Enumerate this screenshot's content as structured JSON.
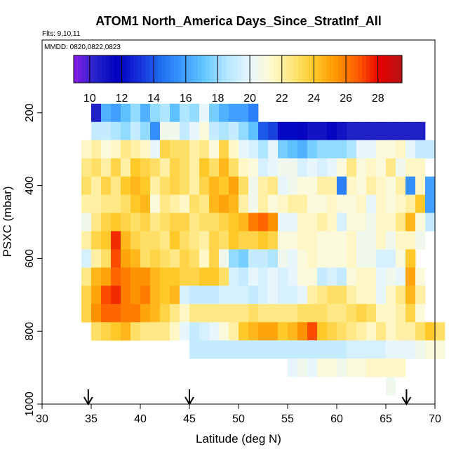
{
  "chart_data": {
    "type": "heatmap",
    "title": "ATOM1 North_America Days_Since_StratInf_All",
    "flights_note": "Flts: 9,10,11",
    "dates_note": "MMDD: 0820,0822,0823",
    "xlabel": "Latitude (deg N)",
    "ylabel": "PSXC (mbar)",
    "xlim": [
      30,
      70
    ],
    "ylim": [
      1000,
      0
    ],
    "x_ticks": [
      30,
      35,
      40,
      45,
      50,
      55,
      60,
      65,
      70
    ],
    "y_ticks": [
      200,
      400,
      600,
      800,
      1000
    ],
    "colorbar": {
      "min": 9,
      "max": 29.5,
      "ticks": [
        10,
        12,
        14,
        16,
        18,
        20,
        22,
        24,
        26,
        28
      ],
      "colors": [
        "#8b1ce6",
        "#2323c8",
        "#0000c0",
        "#1430d8",
        "#1e6ef0",
        "#3c9bff",
        "#64c8ff",
        "#b4e6ff",
        "#e6f5ff",
        "#fffad2",
        "#ffe67a",
        "#ffc828",
        "#ff9600",
        "#ff5a00",
        "#e60000",
        "#b41414"
      ]
    },
    "arrow_latitudes": [
      34.7,
      45.0,
      67.1
    ],
    "grid": false,
    "lat_bin_deg": 1,
    "pressure_bin_mbar": 50,
    "levels": [
      200,
      250,
      300,
      350,
      400,
      450,
      500,
      550,
      600,
      650,
      700,
      750,
      800,
      850,
      900,
      950
    ],
    "rows": [
      {
        "p": 200,
        "lat_start": 35,
        "values": [
          10.5,
          16.5,
          16,
          17,
          18,
          16.5,
          18,
          18.5,
          17,
          18.5,
          18,
          20,
          17.5,
          16.5,
          16,
          16,
          15
        ]
      },
      {
        "p": 250,
        "lat_start": 35,
        "values": [
          19,
          19,
          18.5,
          18,
          19,
          18,
          15.5,
          20.5,
          20.5,
          19,
          20,
          21,
          19,
          18.5,
          19,
          18,
          17,
          14,
          13.5,
          12,
          12,
          11.5,
          11,
          11,
          11.5,
          11,
          10.5,
          10.5,
          10.5,
          10.5,
          10.5,
          10.5,
          10.5,
          10.5
        ]
      },
      {
        "p": 300,
        "lat_start": 34,
        "values": [
          21.5,
          22,
          21,
          21.5,
          22.5,
          22,
          21.5,
          20,
          23.5,
          23,
          23,
          22,
          22.5,
          21,
          23.5,
          21.5,
          20,
          19.5,
          18.5,
          20,
          17.5,
          17,
          16.5,
          17.5,
          18,
          18,
          18,
          18.5,
          20,
          20,
          21,
          21,
          21.5,
          20,
          19,
          19
        ]
      },
      {
        "p": 350,
        "lat_start": 34,
        "values": [
          22.5,
          23,
          22,
          23.5,
          22,
          24,
          23.5,
          23,
          22,
          23.5,
          23,
          22,
          24,
          23,
          24.5,
          23,
          21.5,
          21,
          19.5,
          20,
          20.5,
          20.5,
          19.5,
          20,
          19.5,
          20,
          21,
          22.5,
          21,
          21.5,
          21,
          22.5,
          20.5,
          21.5,
          21.5
        ]
      },
      {
        "p": 400,
        "lat_start": 34,
        "values": [
          23,
          22,
          23.5,
          22.5,
          24,
          24.5,
          24,
          22,
          23,
          23.5,
          23,
          22,
          23.5,
          24.5,
          24,
          25,
          23,
          20.5,
          22,
          22.5,
          20,
          20.5,
          21,
          21,
          22,
          22,
          15,
          21.5,
          21,
          22,
          21.5,
          21,
          22,
          15.5,
          21.5,
          16
        ]
      },
      {
        "p": 450,
        "lat_start": 34,
        "values": [
          22,
          22,
          22.5,
          22.5,
          23,
          24,
          24.5,
          21,
          22.5,
          22,
          21.5,
          23,
          22.5,
          24.5,
          25,
          24.5,
          22,
          20.5,
          22,
          21,
          21.5,
          22,
          22,
          21,
          21,
          21.5,
          21,
          21,
          21.5,
          20,
          21.5,
          21,
          21.5,
          22,
          24,
          16
        ]
      },
      {
        "p": 500,
        "lat_start": 34,
        "values": [
          20.5,
          22.5,
          23.5,
          24,
          23.5,
          23,
          23.5,
          22.5,
          23,
          23.5,
          23.5,
          22.5,
          23,
          23,
          23.5,
          24,
          24.5,
          26,
          26.5,
          25.5,
          20,
          20,
          21.5,
          21.5,
          22,
          21.5,
          19.5,
          21,
          21,
          20.5,
          21.5,
          21.5,
          22.5,
          24.5,
          21,
          19
        ]
      },
      {
        "p": 550,
        "lat_start": 34,
        "values": [
          22,
          23.5,
          24,
          27.5,
          24.5,
          23.5,
          23,
          23,
          22.5,
          24,
          23,
          22.5,
          22,
          23.5,
          23,
          24,
          23.5,
          23.5,
          24,
          23.5,
          21,
          21,
          21.5,
          21.5,
          21,
          21,
          21,
          21.5,
          20.5,
          20.5,
          21.5,
          20.5,
          21.5,
          21.5,
          20.5
        ]
      },
      {
        "p": 600,
        "lat_start": 34,
        "values": [
          19.5,
          22,
          23,
          27,
          25,
          24.5,
          23,
          23.5,
          23,
          22.5,
          23.5,
          23,
          21.5,
          23.5,
          20.5,
          18,
          17.5,
          19,
          19,
          18.5,
          20.5,
          20,
          21,
          21.5,
          21,
          21,
          21,
          21.5,
          20.5,
          20.5,
          19.5,
          19.5,
          21,
          24
        ]
      },
      {
        "p": 650,
        "lat_start": 34,
        "values": [
          22.5,
          24.5,
          25,
          26.5,
          26,
          25.5,
          25.5,
          24.5,
          24,
          24,
          23.5,
          23.5,
          24,
          24,
          23,
          19.5,
          19,
          20,
          19.5,
          20,
          19.5,
          20,
          21,
          21,
          19,
          19.5,
          19,
          21,
          21.5,
          21.5,
          20,
          20.5,
          20,
          25,
          21
        ]
      },
      {
        "p": 700,
        "lat_start": 34,
        "values": [
          23.5,
          25,
          27,
          27.5,
          26,
          25.5,
          26,
          24.5,
          24,
          24.5,
          19.5,
          19,
          19,
          19,
          19.5,
          19.5,
          19.5,
          19,
          19.5,
          20,
          19.5,
          19.5,
          20,
          22,
          22.5,
          23,
          23,
          22,
          21.5,
          21.5,
          20,
          21.5,
          22.5,
          24.5,
          22
        ]
      },
      {
        "p": 750,
        "lat_start": 34,
        "values": [
          23.5,
          25.5,
          26.5,
          26.5,
          26,
          26,
          25,
          24.5,
          23.5,
          22.5,
          21.5,
          22.5,
          22.5,
          22.5,
          22.5,
          22.5,
          22.5,
          23,
          22.5,
          22.5,
          22.5,
          22.5,
          23,
          23,
          23,
          22.5,
          22.5,
          23,
          23.5,
          23,
          21.5,
          21.5,
          22,
          23.5,
          21
        ]
      },
      {
        "p": 800,
        "lat_start": 35,
        "values": [
          23,
          23.5,
          24,
          24.5,
          23,
          22.5,
          22.5,
          22.5,
          21.5,
          20,
          19,
          19.5,
          20,
          21,
          22,
          24,
          24.5,
          25,
          25,
          24,
          24.5,
          25.5,
          27,
          24,
          23.5,
          23,
          22.5,
          22,
          21.5,
          22.5,
          21.5,
          22,
          22,
          23,
          24,
          23
        ]
      },
      {
        "p": 850,
        "lat_start": 45,
        "values": [
          19,
          19,
          19,
          19,
          19,
          19,
          19,
          19,
          19,
          19,
          19,
          19,
          19,
          19,
          19,
          19,
          19.5,
          19.5,
          19.5,
          19.5,
          20,
          20,
          20,
          20.5,
          21,
          21
        ]
      },
      {
        "p": 900,
        "lat_start": 55,
        "values": [
          20,
          20.5,
          20,
          21,
          21,
          20.5,
          21,
          21,
          21.5,
          21.5,
          21.5,
          21.5
        ]
      },
      {
        "p": 950,
        "lat_start": 65,
        "values": [
          20.5
        ]
      }
    ]
  }
}
